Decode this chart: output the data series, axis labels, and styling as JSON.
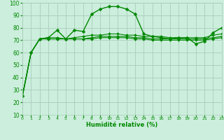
{
  "title": "",
  "xlabel": "Humidité relative (%)",
  "ylabel": "",
  "bg_color": "#cceedd",
  "grid_color": "#aaccbb",
  "line_color": "#008800",
  "marker_color": "#008800",
  "xmin": 0,
  "xmax": 23,
  "ymin": 10,
  "ymax": 100,
  "yticks": [
    10,
    20,
    30,
    40,
    50,
    60,
    70,
    80,
    90,
    100
  ],
  "xticks": [
    0,
    1,
    2,
    3,
    4,
    5,
    6,
    7,
    8,
    9,
    10,
    11,
    12,
    13,
    14,
    15,
    16,
    17,
    18,
    19,
    20,
    21,
    22,
    23
  ],
  "series": [
    [
      25,
      60,
      71,
      72,
      78,
      71,
      78,
      77,
      91,
      95,
      97,
      97,
      95,
      91,
      75,
      73,
      72,
      71,
      72,
      72,
      67,
      69,
      76,
      80
    ],
    [
      25,
      60,
      71,
      72,
      72,
      71,
      72,
      73,
      74,
      74,
      75,
      75,
      74,
      74,
      73,
      73,
      73,
      72,
      72,
      72,
      72,
      72,
      74,
      75
    ],
    [
      25,
      60,
      71,
      71,
      71,
      71,
      71,
      71,
      72,
      73,
      73,
      73,
      73,
      72,
      72,
      71,
      71,
      71,
      71,
      71,
      71,
      71,
      72,
      73
    ],
    [
      25,
      60,
      71,
      71,
      71,
      71,
      71,
      71,
      71,
      72,
      72,
      72,
      72,
      71,
      71,
      70,
      70,
      70,
      70,
      70,
      70,
      70,
      71,
      72
    ]
  ]
}
